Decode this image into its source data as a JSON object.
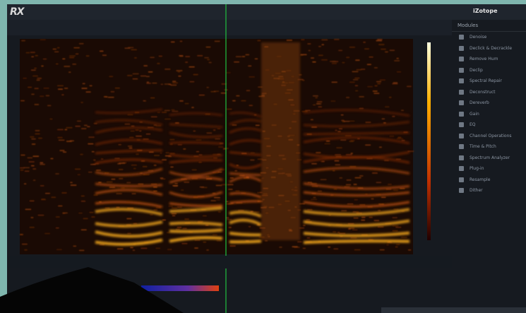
{
  "app": {
    "logo": "RX",
    "brand": "iZotope",
    "modules_title": "Modules",
    "modules": [
      "Denoise",
      "Declick & Decrackle",
      "Remove Hum",
      "Declip",
      "Spectral Repair",
      "Deconstruct",
      "Dereverb",
      "Gain",
      "EQ",
      "Channel Operations",
      "Time & Pitch",
      "Spectrum Analyzer",
      "Plug-in",
      "Resample",
      "Dither"
    ]
  }
}
